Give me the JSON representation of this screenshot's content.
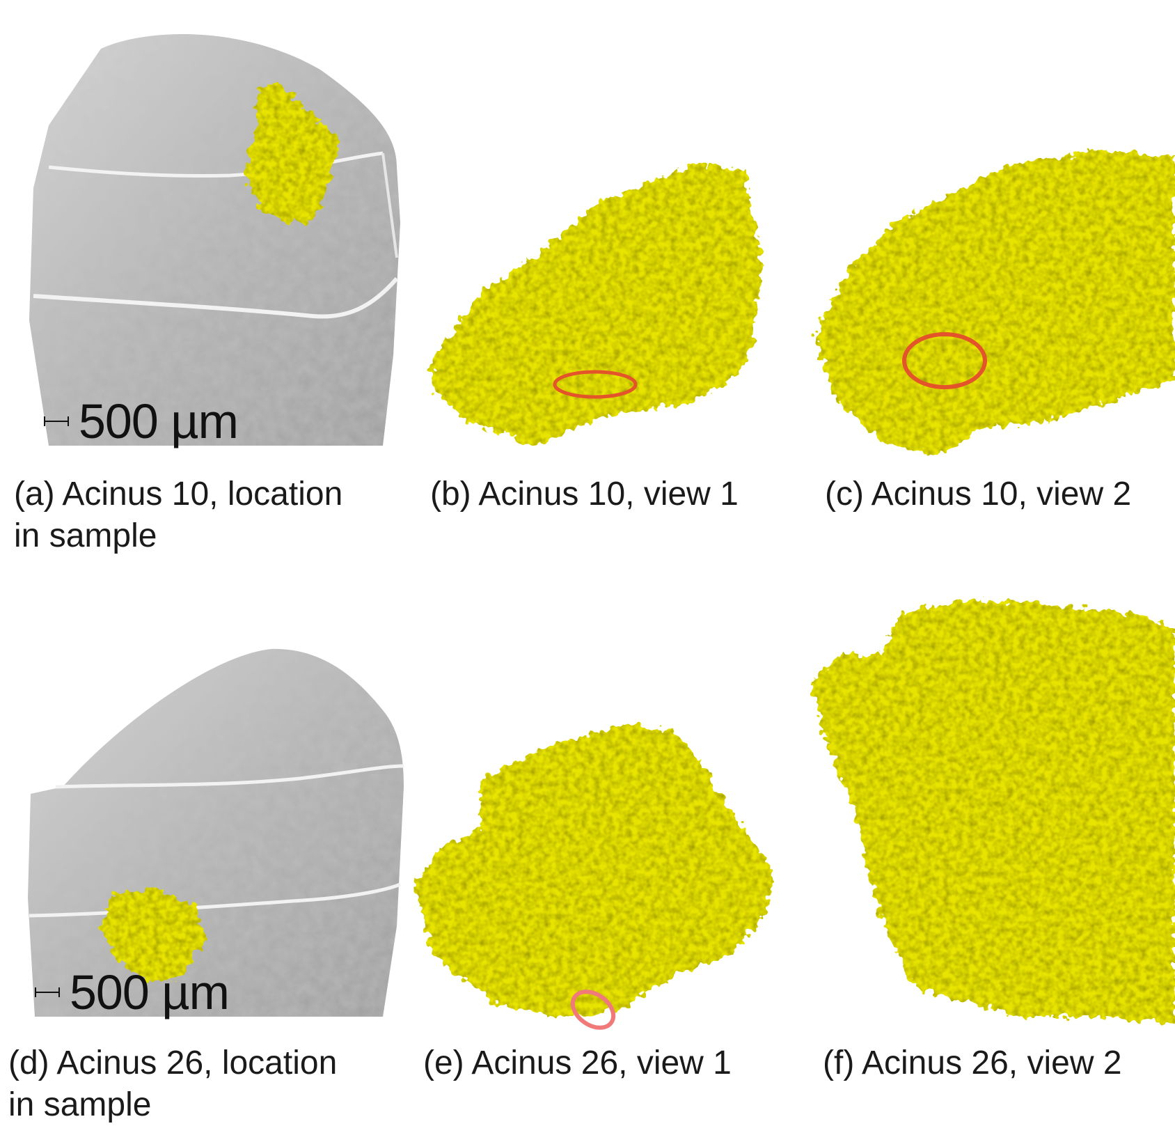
{
  "colors": {
    "acinus": "#e8e400",
    "acinus_shadow": "#8a8700",
    "tissue": "#b8b8b8",
    "marker": "#e3542a"
  },
  "panels": {
    "a": {
      "caption": "(a) Acinus 10, location\nin sample",
      "scale": "500 µm"
    },
    "b": {
      "caption": "(b) Acinus 10, view 1"
    },
    "c": {
      "caption": "(c) Acinus 10, view 2"
    },
    "d": {
      "caption": "(d) Acinus 26, location\nin sample",
      "scale": "500 µm"
    },
    "e": {
      "caption": "(e) Acinus 26, view 1"
    },
    "f": {
      "caption": "(f) Acinus 26, view 2"
    }
  }
}
